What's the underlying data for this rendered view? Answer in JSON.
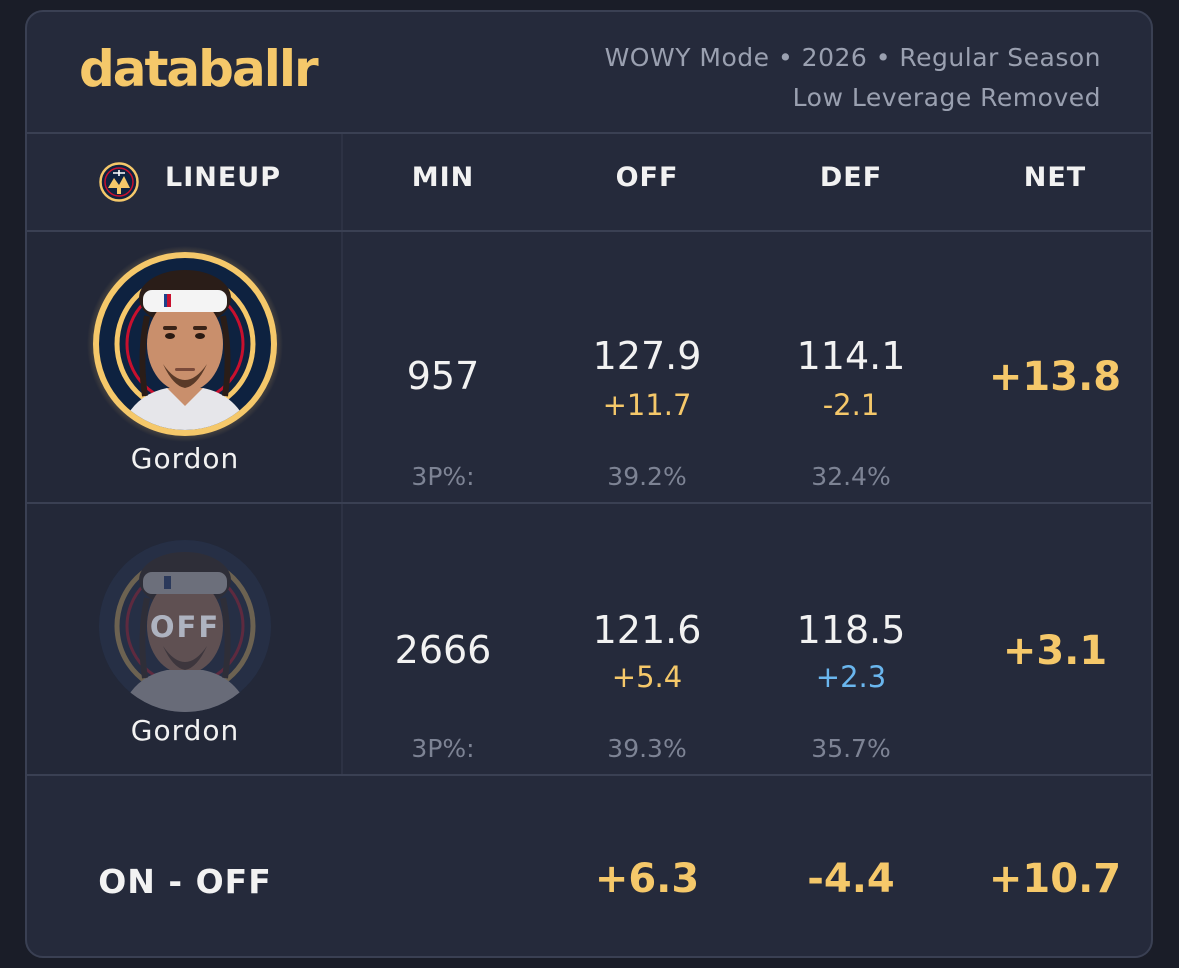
{
  "header": {
    "logo": "databallr",
    "meta_line1": "WOWY Mode • 2026 • Regular Season",
    "meta_line2": "Low Leverage Removed"
  },
  "columns": {
    "lineup": "LINEUP",
    "min": "MIN",
    "off": "OFF",
    "def": "DEF",
    "net": "NET"
  },
  "rows": [
    {
      "player": "Gordon",
      "state": "on",
      "min": "957",
      "off": "127.9",
      "off_diff": "+11.7",
      "def": "114.1",
      "def_diff": "-2.1",
      "net": "+13.8",
      "threep_label": "3P%:",
      "off_3p": "39.2%",
      "def_3p": "32.4%"
    },
    {
      "player": "Gordon",
      "state": "off",
      "off_badge": "OFF",
      "min": "2666",
      "off": "121.6",
      "off_diff": "+5.4",
      "def": "118.5",
      "def_diff": "+2.3",
      "net": "+3.1",
      "threep_label": "3P%:",
      "off_3p": "39.3%",
      "def_3p": "35.7%"
    }
  ],
  "on_off": {
    "label": "ON - OFF",
    "off": "+6.3",
    "def": "-4.4",
    "net": "+10.7"
  },
  "colors": {
    "background": "#1a1d28",
    "card": "#252a3b",
    "gold": "#f5c86a",
    "blue": "#6ab6ee",
    "grey": "#7d8394"
  },
  "icons": [
    "nuggets-logo-icon",
    "player-headshot-on",
    "player-headshot-off"
  ]
}
